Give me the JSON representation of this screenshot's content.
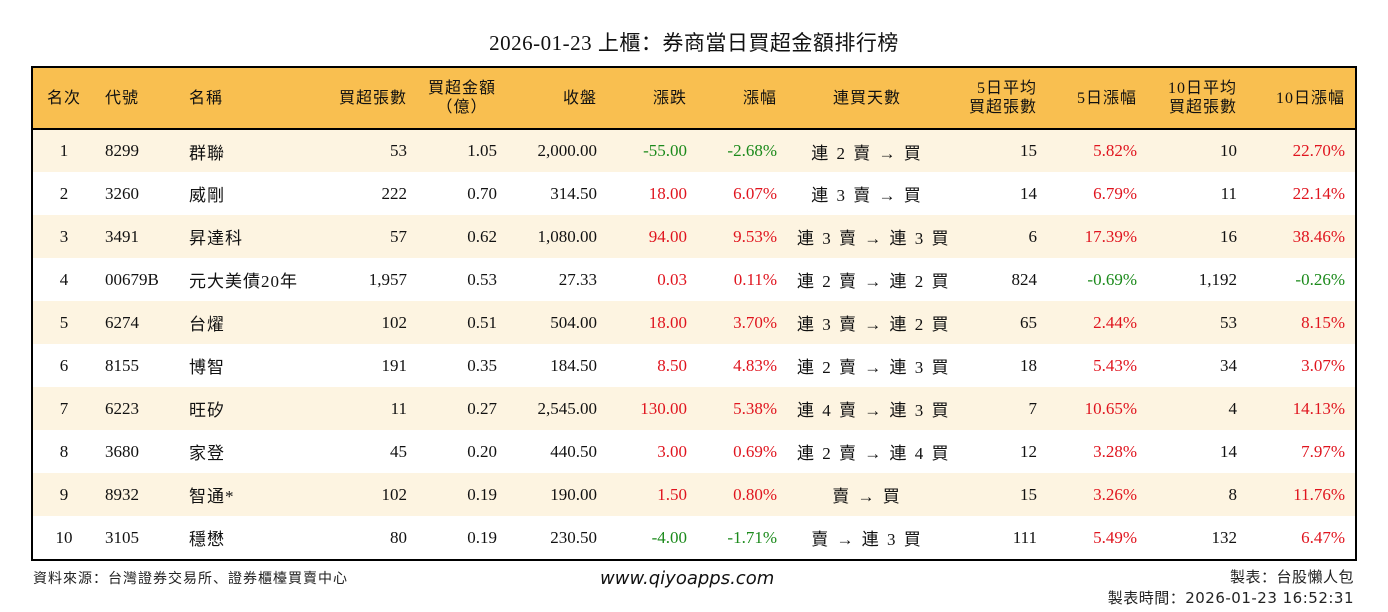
{
  "title": "2026-01-23 上櫃：券商當日買超金額排行榜",
  "colors": {
    "header_bg": "#F9BF50",
    "row_alt_bg": "#FDF4E1",
    "up": "#E0141E",
    "down": "#1B8A1B",
    "border": "#000000"
  },
  "table": {
    "headers": [
      {
        "line1": "名次",
        "line2": ""
      },
      {
        "line1": "代號",
        "line2": ""
      },
      {
        "line1": "名稱",
        "line2": ""
      },
      {
        "line1": "買超張數",
        "line2": ""
      },
      {
        "line1": "買超金額",
        "line2": "（億）"
      },
      {
        "line1": "收盤",
        "line2": ""
      },
      {
        "line1": "漲跌",
        "line2": ""
      },
      {
        "line1": "漲幅",
        "line2": ""
      },
      {
        "line1": "連買天數",
        "line2": ""
      },
      {
        "line1": "5日平均",
        "line2": "買超張數"
      },
      {
        "line1": "5日漲幅",
        "line2": ""
      },
      {
        "line1": "10日平均",
        "line2": "買超張數"
      },
      {
        "line1": "10日漲幅",
        "line2": ""
      }
    ],
    "rows": [
      {
        "rank": "1",
        "code": "8299",
        "name": "群聯",
        "net_buy_lots": "53",
        "net_buy_amount": "1.05",
        "close": "2,000.00",
        "change": "-55.00",
        "change_dir": "down",
        "pct": "-2.68%",
        "pct_dir": "down",
        "streak": "連 2 賣 → 買",
        "avg5_lots": "15",
        "pct5": "5.82%",
        "pct5_dir": "up",
        "avg10_lots": "10",
        "pct10": "22.70%",
        "pct10_dir": "up"
      },
      {
        "rank": "2",
        "code": "3260",
        "name": "威剛",
        "net_buy_lots": "222",
        "net_buy_amount": "0.70",
        "close": "314.50",
        "change": "18.00",
        "change_dir": "up",
        "pct": "6.07%",
        "pct_dir": "up",
        "streak": "連 3 賣 → 買",
        "avg5_lots": "14",
        "pct5": "6.79%",
        "pct5_dir": "up",
        "avg10_lots": "11",
        "pct10": "22.14%",
        "pct10_dir": "up"
      },
      {
        "rank": "3",
        "code": "3491",
        "name": "昇達科",
        "net_buy_lots": "57",
        "net_buy_amount": "0.62",
        "close": "1,080.00",
        "change": "94.00",
        "change_dir": "up",
        "pct": "9.53%",
        "pct_dir": "up",
        "streak": "連 3 賣 → 連 3 買",
        "avg5_lots": "6",
        "pct5": "17.39%",
        "pct5_dir": "up",
        "avg10_lots": "16",
        "pct10": "38.46%",
        "pct10_dir": "up"
      },
      {
        "rank": "4",
        "code": "00679B",
        "name": "元大美債20年",
        "net_buy_lots": "1,957",
        "net_buy_amount": "0.53",
        "close": "27.33",
        "change": "0.03",
        "change_dir": "up",
        "pct": "0.11%",
        "pct_dir": "up",
        "streak": "連 2 賣 → 連 2 買",
        "avg5_lots": "824",
        "pct5": "-0.69%",
        "pct5_dir": "down",
        "avg10_lots": "1,192",
        "pct10": "-0.26%",
        "pct10_dir": "down"
      },
      {
        "rank": "5",
        "code": "6274",
        "name": "台燿",
        "net_buy_lots": "102",
        "net_buy_amount": "0.51",
        "close": "504.00",
        "change": "18.00",
        "change_dir": "up",
        "pct": "3.70%",
        "pct_dir": "up",
        "streak": "連 3 賣 → 連 2 買",
        "avg5_lots": "65",
        "pct5": "2.44%",
        "pct5_dir": "up",
        "avg10_lots": "53",
        "pct10": "8.15%",
        "pct10_dir": "up"
      },
      {
        "rank": "6",
        "code": "8155",
        "name": "博智",
        "net_buy_lots": "191",
        "net_buy_amount": "0.35",
        "close": "184.50",
        "change": "8.50",
        "change_dir": "up",
        "pct": "4.83%",
        "pct_dir": "up",
        "streak": "連 2 賣 → 連 3 買",
        "avg5_lots": "18",
        "pct5": "5.43%",
        "pct5_dir": "up",
        "avg10_lots": "34",
        "pct10": "3.07%",
        "pct10_dir": "up"
      },
      {
        "rank": "7",
        "code": "6223",
        "name": "旺矽",
        "net_buy_lots": "11",
        "net_buy_amount": "0.27",
        "close": "2,545.00",
        "change": "130.00",
        "change_dir": "up",
        "pct": "5.38%",
        "pct_dir": "up",
        "streak": "連 4 賣 → 連 3 買",
        "avg5_lots": "7",
        "pct5": "10.65%",
        "pct5_dir": "up",
        "avg10_lots": "4",
        "pct10": "14.13%",
        "pct10_dir": "up"
      },
      {
        "rank": "8",
        "code": "3680",
        "name": "家登",
        "net_buy_lots": "45",
        "net_buy_amount": "0.20",
        "close": "440.50",
        "change": "3.00",
        "change_dir": "up",
        "pct": "0.69%",
        "pct_dir": "up",
        "streak": "連 2 賣 → 連 4 買",
        "avg5_lots": "12",
        "pct5": "3.28%",
        "pct5_dir": "up",
        "avg10_lots": "14",
        "pct10": "7.97%",
        "pct10_dir": "up"
      },
      {
        "rank": "9",
        "code": "8932",
        "name": "智通*",
        "net_buy_lots": "102",
        "net_buy_amount": "0.19",
        "close": "190.00",
        "change": "1.50",
        "change_dir": "up",
        "pct": "0.80%",
        "pct_dir": "up",
        "streak": "賣 → 買",
        "avg5_lots": "15",
        "pct5": "3.26%",
        "pct5_dir": "up",
        "avg10_lots": "8",
        "pct10": "11.76%",
        "pct10_dir": "up"
      },
      {
        "rank": "10",
        "code": "3105",
        "name": "穩懋",
        "net_buy_lots": "80",
        "net_buy_amount": "0.19",
        "close": "230.50",
        "change": "-4.00",
        "change_dir": "down",
        "pct": "-1.71%",
        "pct_dir": "down",
        "streak": "賣 → 連 3 買",
        "avg5_lots": "111",
        "pct5": "5.49%",
        "pct5_dir": "up",
        "avg10_lots": "132",
        "pct10": "6.47%",
        "pct10_dir": "up"
      }
    ]
  },
  "footer": {
    "source": "資料來源：台灣證券交易所、證券櫃檯買賣中心",
    "website": "www.qiyoapps.com",
    "author": "製表：台股懶人包",
    "generated": "製表時間：2026-01-23 16:52:31"
  }
}
